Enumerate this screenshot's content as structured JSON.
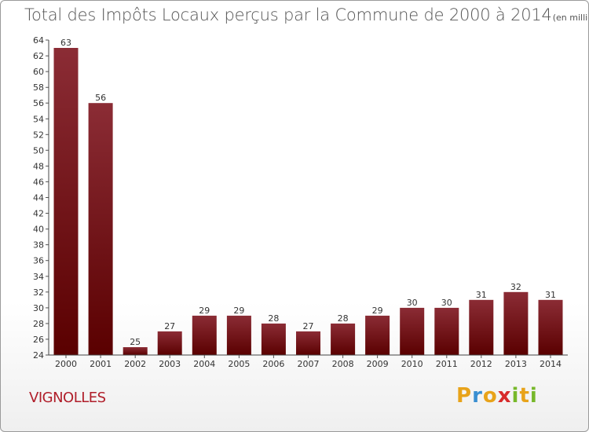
{
  "chart_data": {
    "type": "bar",
    "title": "Total des Impôts Locaux perçus par la Commune de 2000 à 2014",
    "unit_note": "(en milliers d'€)",
    "categories": [
      "2000",
      "2001",
      "2002",
      "2003",
      "2004",
      "2005",
      "2006",
      "2007",
      "2008",
      "2009",
      "2010",
      "2011",
      "2012",
      "2013",
      "2014"
    ],
    "values": [
      63,
      56,
      25,
      27,
      29,
      29,
      28,
      27,
      28,
      29,
      30,
      30,
      31,
      32,
      31
    ],
    "ylim": [
      24,
      64
    ],
    "yticks": [
      24,
      26,
      28,
      30,
      32,
      34,
      36,
      38,
      40,
      42,
      44,
      46,
      48,
      50,
      52,
      54,
      56,
      58,
      60,
      62,
      64
    ],
    "grid": false,
    "bar_color_top": "#8b2c35",
    "bar_color_bottom": "#5a0000"
  },
  "commune": "VIGNOLLES",
  "logo": {
    "letters": [
      "P",
      "r",
      "o",
      "x",
      "i",
      "t",
      "i"
    ],
    "colors": [
      "#e8a31a",
      "#3a8fd1",
      "#e8a31a",
      "#d82b2b",
      "#77b82a",
      "#e8a31a",
      "#77b82a"
    ]
  }
}
